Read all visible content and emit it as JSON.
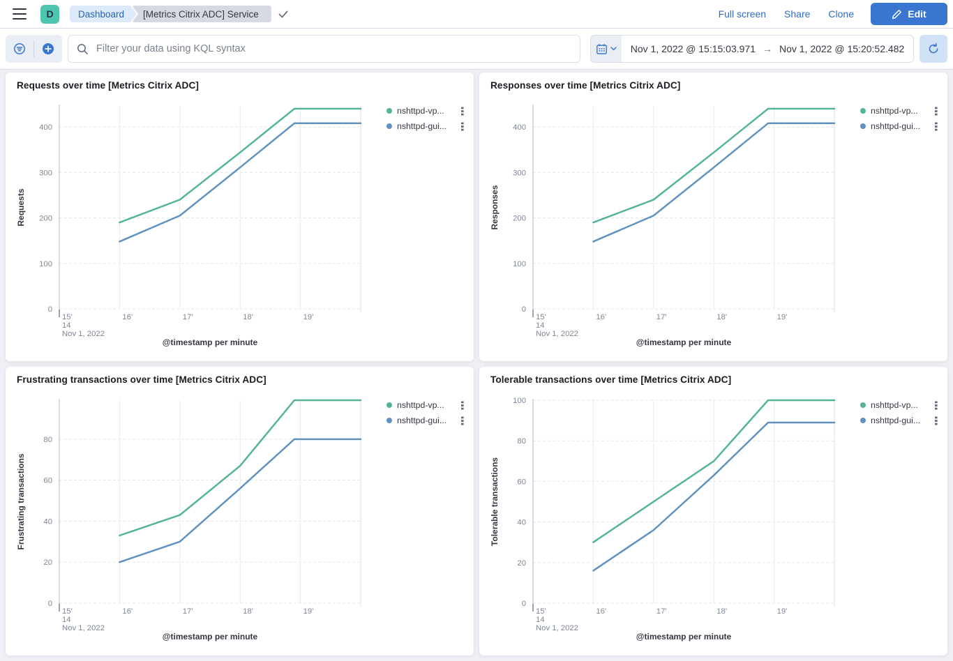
{
  "header": {
    "app_initial": "D",
    "breadcrumbs": [
      "Dashboard",
      "[Metrics Citrix ADC] Service"
    ],
    "actions": {
      "full_screen": "Full screen",
      "share": "Share",
      "clone": "Clone",
      "edit": "Edit"
    }
  },
  "toolbar": {
    "search_placeholder": "Filter your data using KQL syntax",
    "time_start": "Nov 1, 2022 @ 15:15:03.971",
    "time_arrow": "→",
    "time_end": "Nov 1, 2022 @ 15:20:52.482"
  },
  "colors": {
    "series_green": "#54b399",
    "series_blue": "#6092c0",
    "primary_blue": "#3a76cf",
    "avatar_teal": "#4ec6af",
    "page_bg": "#eef0f5"
  },
  "chart_data": [
    {
      "type": "line",
      "title": "Requests over time [Metrics Citrix ADC]",
      "xlabel": "@timestamp per minute",
      "ylabel": "Requests",
      "x_ticks": [
        "15'",
        "16'",
        "17'",
        "18'",
        "19'"
      ],
      "x_context": [
        "14",
        "Nov 1, 2022"
      ],
      "xlim": [
        15,
        20
      ],
      "ylim": [
        0,
        446
      ],
      "y_ticks": [
        0,
        100,
        200,
        300,
        400
      ],
      "grid": true,
      "legend_position": "right",
      "series": [
        {
          "name": "nshttpd-vp...",
          "color": "#54b399",
          "points": [
            [
              16,
              190
            ],
            [
              17,
              240
            ],
            [
              18,
              344
            ],
            [
              18.9,
              440
            ],
            [
              20,
              440
            ]
          ]
        },
        {
          "name": "nshttpd-gui...",
          "color": "#6092c0",
          "points": [
            [
              16,
              148
            ],
            [
              17,
              205
            ],
            [
              18,
              311
            ],
            [
              18.9,
              408
            ],
            [
              20,
              408
            ]
          ]
        }
      ]
    },
    {
      "type": "line",
      "title": "Responses over time [Metrics Citrix ADC]",
      "xlabel": "@timestamp per minute",
      "ylabel": "Responses",
      "x_ticks": [
        "15'",
        "16'",
        "17'",
        "18'",
        "19'"
      ],
      "x_context": [
        "14",
        "Nov 1, 2022"
      ],
      "xlim": [
        15,
        20
      ],
      "ylim": [
        0,
        446
      ],
      "y_ticks": [
        0,
        100,
        200,
        300,
        400
      ],
      "grid": true,
      "legend_position": "right",
      "series": [
        {
          "name": "nshttpd-vp...",
          "color": "#54b399",
          "points": [
            [
              16,
              190
            ],
            [
              17,
              240
            ],
            [
              18,
              344
            ],
            [
              18.9,
              440
            ],
            [
              20,
              440
            ]
          ]
        },
        {
          "name": "nshttpd-gui...",
          "color": "#6092c0",
          "points": [
            [
              16,
              148
            ],
            [
              17,
              205
            ],
            [
              18,
              311
            ],
            [
              18.9,
              408
            ],
            [
              20,
              408
            ]
          ]
        }
      ]
    },
    {
      "type": "line",
      "title": "Frustrating transactions over time [Metrics Citrix ADC]",
      "xlabel": "@timestamp per minute",
      "ylabel": "Frustrating transactions",
      "x_ticks": [
        "15'",
        "16'",
        "17'",
        "18'",
        "19'"
      ],
      "x_context": [
        "14",
        "Nov 1, 2022"
      ],
      "xlim": [
        15,
        20
      ],
      "ylim": [
        0,
        99
      ],
      "y_ticks": [
        0,
        20,
        40,
        60,
        80
      ],
      "grid": true,
      "legend_position": "right",
      "series": [
        {
          "name": "nshttpd-vp...",
          "color": "#54b399",
          "points": [
            [
              16,
              33
            ],
            [
              17,
              43
            ],
            [
              18,
              67
            ],
            [
              18.9,
              99
            ],
            [
              20,
              99
            ]
          ]
        },
        {
          "name": "nshttpd-gui...",
          "color": "#6092c0",
          "points": [
            [
              16,
              20
            ],
            [
              17,
              30
            ],
            [
              18,
              56
            ],
            [
              18.9,
              80
            ],
            [
              20,
              80
            ]
          ]
        }
      ]
    },
    {
      "type": "line",
      "title": "Tolerable transactions over time [Metrics Citrix ADC]",
      "xlabel": "@timestamp per minute",
      "ylabel": "Tolerable transactions",
      "x_ticks": [
        "15'",
        "16'",
        "17'",
        "18'",
        "19'"
      ],
      "x_context": [
        "14",
        "Nov 1, 2022"
      ],
      "xlim": [
        15,
        20
      ],
      "ylim": [
        0,
        100
      ],
      "y_ticks": [
        0,
        20,
        40,
        60,
        80,
        100
      ],
      "grid": true,
      "legend_position": "right",
      "series": [
        {
          "name": "nshttpd-vp...",
          "color": "#54b399",
          "points": [
            [
              16,
              30
            ],
            [
              17,
              50
            ],
            [
              18,
              70
            ],
            [
              18.9,
              100
            ],
            [
              20,
              100
            ]
          ]
        },
        {
          "name": "nshttpd-gui...",
          "color": "#6092c0",
          "points": [
            [
              16,
              16
            ],
            [
              17,
              36
            ],
            [
              18,
              63
            ],
            [
              18.9,
              89
            ],
            [
              20,
              89
            ]
          ]
        }
      ]
    }
  ]
}
